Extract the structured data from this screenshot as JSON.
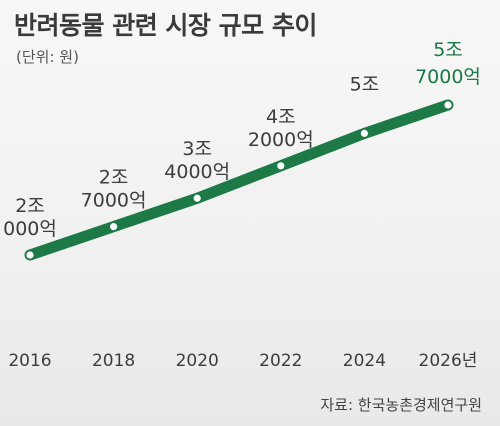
{
  "title": "반려동물 관련 시장 규모 추이",
  "unit": "(단위: 원)",
  "source": "자료: 한국농촌경제연구원",
  "colors": {
    "line": "#1d7a46",
    "highlight": "#1a7a45",
    "marker": "#ffffff"
  },
  "chart_data": {
    "type": "line",
    "x": [
      "2016",
      "2018",
      "2020",
      "2022",
      "2024",
      "2026년"
    ],
    "values": [
      2.0,
      2.7,
      3.4,
      4.2,
      5.0,
      5.7
    ],
    "value_unit": "조 원",
    "data_labels": [
      [
        "2조",
        "000억"
      ],
      [
        "2조",
        "7000억"
      ],
      [
        "3조",
        "4000억"
      ],
      [
        "4조",
        "2000억"
      ],
      [
        "5조",
        ""
      ],
      [
        "5조",
        "7000억"
      ]
    ],
    "highlight_index": 5,
    "grid": false,
    "legend": "none"
  }
}
